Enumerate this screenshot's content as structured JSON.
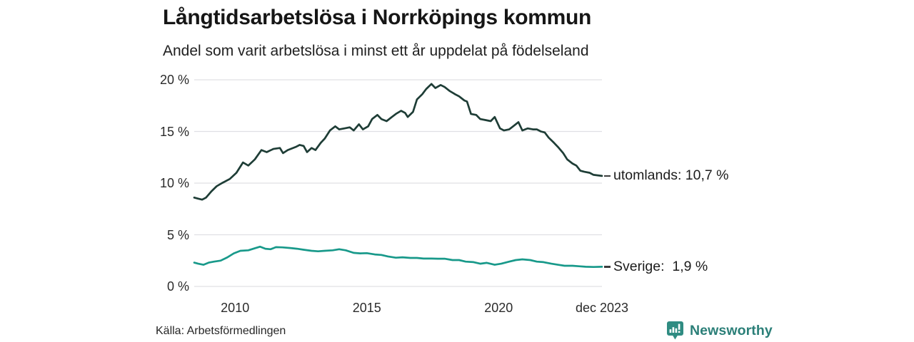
{
  "header": {
    "title": "Långtidsarbetslösa i Norrköpings kommun",
    "subtitle": "Andel som varit arbetslösa i minst ett år uppdelat på födelseland"
  },
  "footer": {
    "source": "Källa: Arbetsförmedlingen",
    "brand_name": "Newsworthy",
    "brand_color": "#2b7f78",
    "brand_icon_color": "#2f8c82"
  },
  "chart_data": {
    "type": "line",
    "title": "Långtidsarbetslösa i Norrköpings kommun",
    "subtitle": "Andel som varit arbetslösa i minst ett år uppdelat på födelseland",
    "xlabel": "",
    "ylabel": "",
    "xlim": [
      2008.45,
      2023.92
    ],
    "ylim": [
      0,
      20
    ],
    "grid": "horizontal",
    "gridline_color": "#e0e0e4",
    "legend_position": "right-of-line-end",
    "y_ticks": [
      {
        "v": 0,
        "label": "0 %"
      },
      {
        "v": 5,
        "label": "5 %"
      },
      {
        "v": 10,
        "label": "10 %"
      },
      {
        "v": 15,
        "label": "15 %"
      },
      {
        "v": 20,
        "label": "20 %"
      }
    ],
    "x_ticks": [
      {
        "v": 2010,
        "label": "2010"
      },
      {
        "v": 2015,
        "label": "2015"
      },
      {
        "v": 2020,
        "label": "2020"
      },
      {
        "v": 2023.92,
        "label": "dec 2023"
      }
    ],
    "series": [
      {
        "name": "utomlands",
        "end_label": "utomlands: 10,7 %",
        "end_value": "10,7 %",
        "color": "#1e3d36",
        "points": [
          [
            2008.45,
            8.6
          ],
          [
            2008.6,
            8.5
          ],
          [
            2008.75,
            8.4
          ],
          [
            2008.9,
            8.6
          ],
          [
            2009.1,
            9.2
          ],
          [
            2009.3,
            9.7
          ],
          [
            2009.5,
            10.0
          ],
          [
            2009.8,
            10.4
          ],
          [
            2010.05,
            11.0
          ],
          [
            2010.3,
            12.0
          ],
          [
            2010.5,
            11.7
          ],
          [
            2010.75,
            12.3
          ],
          [
            2011.0,
            13.2
          ],
          [
            2011.2,
            13.0
          ],
          [
            2011.45,
            13.3
          ],
          [
            2011.7,
            13.4
          ],
          [
            2011.82,
            12.9
          ],
          [
            2012.0,
            13.2
          ],
          [
            2012.3,
            13.5
          ],
          [
            2012.45,
            13.7
          ],
          [
            2012.6,
            13.6
          ],
          [
            2012.73,
            13.0
          ],
          [
            2012.9,
            13.4
          ],
          [
            2013.05,
            13.2
          ],
          [
            2013.25,
            13.9
          ],
          [
            2013.4,
            14.3
          ],
          [
            2013.6,
            15.1
          ],
          [
            2013.8,
            15.5
          ],
          [
            2013.95,
            15.2
          ],
          [
            2014.15,
            15.3
          ],
          [
            2014.35,
            15.4
          ],
          [
            2014.5,
            15.1
          ],
          [
            2014.7,
            15.7
          ],
          [
            2014.85,
            15.2
          ],
          [
            2015.05,
            15.5
          ],
          [
            2015.2,
            16.2
          ],
          [
            2015.4,
            16.6
          ],
          [
            2015.55,
            16.2
          ],
          [
            2015.75,
            16.0
          ],
          [
            2015.95,
            16.4
          ],
          [
            2016.1,
            16.7
          ],
          [
            2016.3,
            17.0
          ],
          [
            2016.45,
            16.8
          ],
          [
            2016.55,
            16.4
          ],
          [
            2016.75,
            16.9
          ],
          [
            2016.9,
            18.1
          ],
          [
            2017.1,
            18.6
          ],
          [
            2017.25,
            19.1
          ],
          [
            2017.45,
            19.6
          ],
          [
            2017.6,
            19.2
          ],
          [
            2017.8,
            19.5
          ],
          [
            2017.95,
            19.3
          ],
          [
            2018.15,
            18.9
          ],
          [
            2018.35,
            18.6
          ],
          [
            2018.5,
            18.4
          ],
          [
            2018.7,
            18.0
          ],
          [
            2018.8,
            17.9
          ],
          [
            2018.95,
            16.7
          ],
          [
            2019.15,
            16.6
          ],
          [
            2019.3,
            16.2
          ],
          [
            2019.5,
            16.1
          ],
          [
            2019.7,
            16.0
          ],
          [
            2019.85,
            16.4
          ],
          [
            2020.05,
            15.3
          ],
          [
            2020.2,
            15.1
          ],
          [
            2020.4,
            15.2
          ],
          [
            2020.55,
            15.5
          ],
          [
            2020.75,
            15.9
          ],
          [
            2020.9,
            15.1
          ],
          [
            2021.1,
            15.3
          ],
          [
            2021.3,
            15.2
          ],
          [
            2021.45,
            15.2
          ],
          [
            2021.6,
            15.0
          ],
          [
            2021.75,
            14.9
          ],
          [
            2021.9,
            14.4
          ],
          [
            2022.1,
            13.9
          ],
          [
            2022.25,
            13.5
          ],
          [
            2022.45,
            12.9
          ],
          [
            2022.6,
            12.3
          ],
          [
            2022.8,
            11.9
          ],
          [
            2022.95,
            11.7
          ],
          [
            2023.1,
            11.2
          ],
          [
            2023.25,
            11.1
          ],
          [
            2023.45,
            11.0
          ],
          [
            2023.6,
            10.8
          ],
          [
            2023.92,
            10.7
          ]
        ]
      },
      {
        "name": "Sverige",
        "end_label": "Sverige:  1,9 %",
        "end_value": "1,9 %",
        "color": "#18998a",
        "points": [
          [
            2008.45,
            2.3
          ],
          [
            2008.6,
            2.2
          ],
          [
            2008.8,
            2.1
          ],
          [
            2009.0,
            2.3
          ],
          [
            2009.2,
            2.4
          ],
          [
            2009.45,
            2.5
          ],
          [
            2009.7,
            2.8
          ],
          [
            2009.95,
            3.2
          ],
          [
            2010.2,
            3.45
          ],
          [
            2010.5,
            3.5
          ],
          [
            2010.75,
            3.7
          ],
          [
            2010.95,
            3.85
          ],
          [
            2011.15,
            3.65
          ],
          [
            2011.35,
            3.6
          ],
          [
            2011.55,
            3.8
          ],
          [
            2011.8,
            3.78
          ],
          [
            2012.1,
            3.72
          ],
          [
            2012.35,
            3.65
          ],
          [
            2012.6,
            3.55
          ],
          [
            2012.9,
            3.45
          ],
          [
            2013.15,
            3.4
          ],
          [
            2013.4,
            3.45
          ],
          [
            2013.7,
            3.5
          ],
          [
            2013.95,
            3.6
          ],
          [
            2014.2,
            3.5
          ],
          [
            2014.5,
            3.25
          ],
          [
            2014.75,
            3.2
          ],
          [
            2015.0,
            3.22
          ],
          [
            2015.3,
            3.1
          ],
          [
            2015.55,
            3.05
          ],
          [
            2015.8,
            2.9
          ],
          [
            2016.1,
            2.78
          ],
          [
            2016.35,
            2.82
          ],
          [
            2016.65,
            2.76
          ],
          [
            2016.9,
            2.76
          ],
          [
            2017.15,
            2.7
          ],
          [
            2017.45,
            2.7
          ],
          [
            2017.7,
            2.68
          ],
          [
            2017.95,
            2.68
          ],
          [
            2018.25,
            2.55
          ],
          [
            2018.5,
            2.55
          ],
          [
            2018.75,
            2.4
          ],
          [
            2019.05,
            2.35
          ],
          [
            2019.3,
            2.2
          ],
          [
            2019.55,
            2.28
          ],
          [
            2019.85,
            2.1
          ],
          [
            2020.1,
            2.2
          ],
          [
            2020.4,
            2.4
          ],
          [
            2020.65,
            2.55
          ],
          [
            2020.9,
            2.62
          ],
          [
            2021.2,
            2.55
          ],
          [
            2021.45,
            2.4
          ],
          [
            2021.7,
            2.35
          ],
          [
            2022.0,
            2.2
          ],
          [
            2022.25,
            2.1
          ],
          [
            2022.5,
            2.0
          ],
          [
            2022.8,
            2.0
          ],
          [
            2023.05,
            1.95
          ],
          [
            2023.3,
            1.9
          ],
          [
            2023.6,
            1.88
          ],
          [
            2023.92,
            1.9
          ]
        ]
      }
    ]
  }
}
